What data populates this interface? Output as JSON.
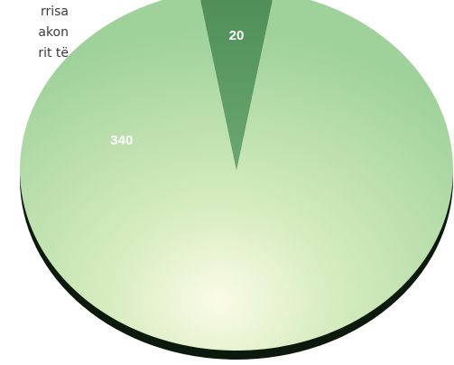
{
  "side_text": {
    "lines": [
      "rrisa",
      "akon",
      "rit të"
    ]
  },
  "chart_data": {
    "type": "pie",
    "title": "",
    "slices": [
      {
        "label": "20",
        "value": 20,
        "color": "#5a9a62"
      },
      {
        "label": "340",
        "value": 340,
        "color": "#9fd29a"
      }
    ],
    "legend": "none",
    "style": "3d"
  }
}
